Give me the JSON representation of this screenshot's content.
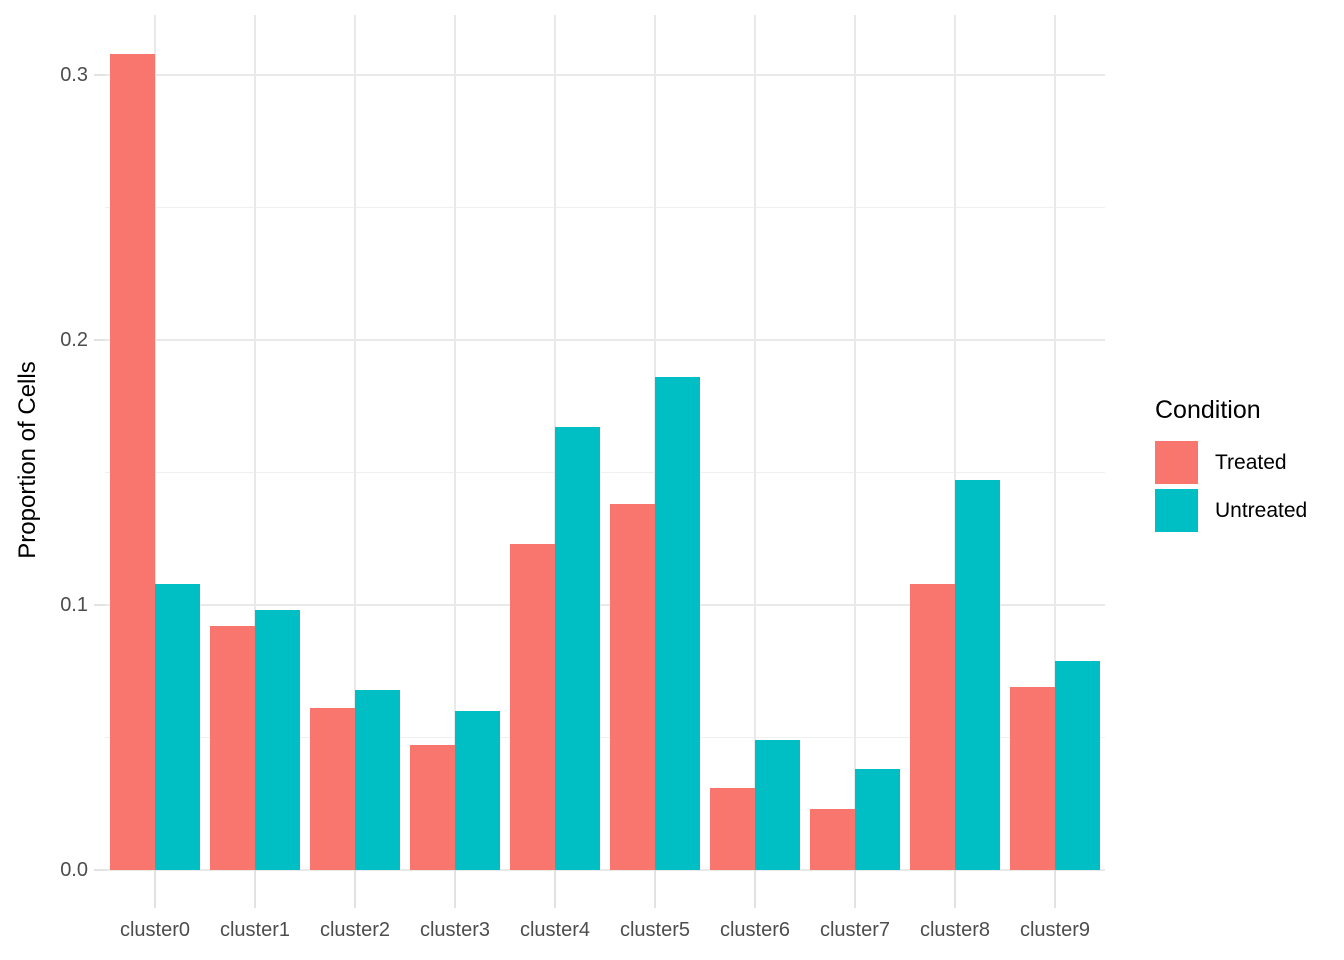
{
  "chart_data": {
    "type": "bar",
    "title": "",
    "xlabel": "",
    "ylabel": "Proportion of Cells",
    "categories": [
      "cluster0",
      "cluster1",
      "cluster2",
      "cluster3",
      "cluster4",
      "cluster5",
      "cluster6",
      "cluster7",
      "cluster8",
      "cluster9"
    ],
    "series": [
      {
        "name": "Treated",
        "color": "#F8766D",
        "values": [
          0.308,
          0.092,
          0.061,
          0.047,
          0.123,
          0.138,
          0.031,
          0.023,
          0.108,
          0.069
        ]
      },
      {
        "name": "Untreated",
        "color": "#00BFC4",
        "values": [
          0.108,
          0.098,
          0.068,
          0.06,
          0.167,
          0.186,
          0.049,
          0.038,
          0.147,
          0.079
        ]
      }
    ],
    "y_ticks": [
      "0.0",
      "0.1",
      "0.2",
      "0.3"
    ],
    "y_tick_values": [
      0.0,
      0.1,
      0.2,
      0.3
    ],
    "y_minor_tick_values": [
      0.05,
      0.15,
      0.25
    ],
    "ylim": [
      0,
      0.322
    ],
    "grid": "on",
    "legend": {
      "title": "Condition",
      "position": "right"
    },
    "colors": {
      "treated": "#F8766D",
      "untreated": "#00BFC4",
      "gridline": "#e9e9e9",
      "tick_label": "#4d4d4d"
    }
  }
}
